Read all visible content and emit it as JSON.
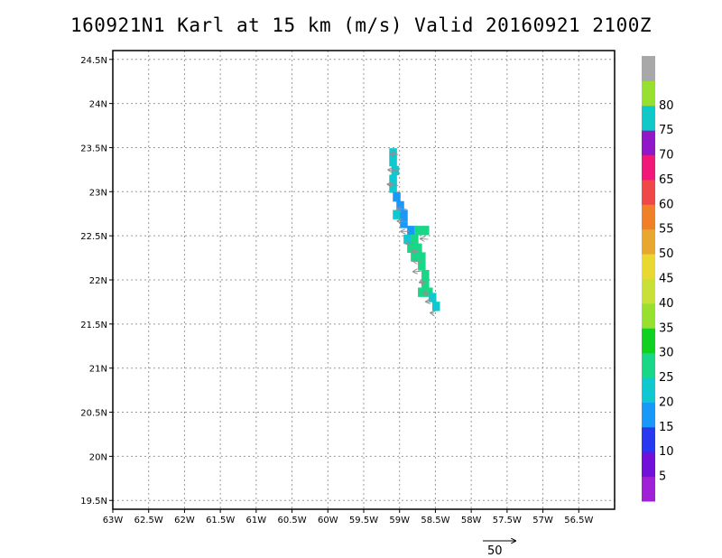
{
  "title": "160921N1 Karl at 15 km (m/s) Valid 20160921 2100Z",
  "chart_data": {
    "type": "heatmap",
    "title": "160921N1 Karl at 15 km (m/s) Valid 20160921 2100Z",
    "xlim": [
      -63.0,
      -56.0
    ],
    "ylim": [
      19.4,
      24.6
    ],
    "x_ticks": [
      -63,
      -62.5,
      -62,
      -61.5,
      -61,
      -60.5,
      -60,
      -59.5,
      -59,
      -58.5,
      -58,
      -57.5,
      -57,
      -56.5
    ],
    "x_tick_labels": [
      "63W",
      "62.5W",
      "62W",
      "61.5W",
      "61W",
      "60.5W",
      "60W",
      "59.5W",
      "59W",
      "58.5W",
      "58W",
      "57.5W",
      "57W",
      "56.5W"
    ],
    "y_ticks": [
      19.5,
      20,
      20.5,
      21,
      21.5,
      22,
      22.5,
      23,
      23.5,
      24,
      24.5
    ],
    "y_tick_labels": [
      "19.5N",
      "20N",
      "20.5N",
      "21N",
      "21.5N",
      "22N",
      "22.5N",
      "23N",
      "23.5N",
      "24N",
      "24.5N"
    ],
    "grid": true,
    "colorbar": {
      "labels": [
        "5",
        "10",
        "15",
        "20",
        "25",
        "30",
        "35",
        "40",
        "45",
        "50",
        "55",
        "60",
        "65",
        "70",
        "75",
        "80"
      ],
      "colors": [
        "#a020d8",
        "#7010d8",
        "#2838f0",
        "#1898f8",
        "#10c8d0",
        "#18d888",
        "#10d020",
        "#98e030",
        "#c8e038",
        "#e8d830",
        "#e8a830",
        "#f08028",
        "#f04848",
        "#f01878",
        "#9018c8",
        "#10c8c8",
        "#98e030",
        "#a8a8a8"
      ]
    },
    "cells": [
      {
        "lon": -59.09,
        "lat": 23.44,
        "speed": 17
      },
      {
        "lon": -59.09,
        "lat": 23.34,
        "speed": 17
      },
      {
        "lon": -59.06,
        "lat": 23.24,
        "speed": 17
      },
      {
        "lon": -59.09,
        "lat": 23.14,
        "speed": 17
      },
      {
        "lon": -59.09,
        "lat": 23.04,
        "speed": 17
      },
      {
        "lon": -59.04,
        "lat": 22.94,
        "speed": 12
      },
      {
        "lon": -58.99,
        "lat": 22.84,
        "speed": 12
      },
      {
        "lon": -59.04,
        "lat": 22.74,
        "speed": 17
      },
      {
        "lon": -58.94,
        "lat": 22.74,
        "speed": 12
      },
      {
        "lon": -58.94,
        "lat": 22.64,
        "speed": 12
      },
      {
        "lon": -58.84,
        "lat": 22.56,
        "speed": 12
      },
      {
        "lon": -58.74,
        "lat": 22.56,
        "speed": 22
      },
      {
        "lon": -58.64,
        "lat": 22.56,
        "speed": 22
      },
      {
        "lon": -58.89,
        "lat": 22.46,
        "speed": 17
      },
      {
        "lon": -58.79,
        "lat": 22.46,
        "speed": 22
      },
      {
        "lon": -58.84,
        "lat": 22.36,
        "speed": 22
      },
      {
        "lon": -58.74,
        "lat": 22.36,
        "speed": 22
      },
      {
        "lon": -58.79,
        "lat": 22.26,
        "speed": 22
      },
      {
        "lon": -58.69,
        "lat": 22.26,
        "speed": 22
      },
      {
        "lon": -58.69,
        "lat": 22.16,
        "speed": 22
      },
      {
        "lon": -58.64,
        "lat": 22.06,
        "speed": 22
      },
      {
        "lon": -58.64,
        "lat": 21.96,
        "speed": 22
      },
      {
        "lon": -58.69,
        "lat": 21.86,
        "speed": 22
      },
      {
        "lon": -58.59,
        "lat": 21.86,
        "speed": 22
      },
      {
        "lon": -58.54,
        "lat": 21.8,
        "speed": 17
      },
      {
        "lon": -58.49,
        "lat": 21.7,
        "speed": 17
      }
    ],
    "vectors": [
      {
        "lon": -59.02,
        "lat": 23.42,
        "u": -12,
        "v": 1
      },
      {
        "lon": -59.02,
        "lat": 23.24,
        "u": -15,
        "v": 1
      },
      {
        "lon": -59.02,
        "lat": 23.07,
        "u": -16,
        "v": 2
      },
      {
        "lon": -58.9,
        "lat": 22.8,
        "u": -14,
        "v": 1
      },
      {
        "lon": -58.9,
        "lat": 22.66,
        "u": -14,
        "v": 1
      },
      {
        "lon": -58.87,
        "lat": 22.55,
        "u": -12,
        "v": 0
      },
      {
        "lon": -58.6,
        "lat": 22.46,
        "u": -12,
        "v": 1
      },
      {
        "lon": -58.8,
        "lat": 22.42,
        "u": -12,
        "v": -1
      },
      {
        "lon": -58.74,
        "lat": 22.32,
        "u": -10,
        "v": 1
      },
      {
        "lon": -58.7,
        "lat": 22.2,
        "u": -12,
        "v": 2
      },
      {
        "lon": -58.7,
        "lat": 22.1,
        "u": -12,
        "v": -1
      },
      {
        "lon": -58.63,
        "lat": 21.98,
        "u": -10,
        "v": -1
      },
      {
        "lon": -58.58,
        "lat": 21.86,
        "u": -10,
        "v": -2
      },
      {
        "lon": -58.54,
        "lat": 21.76,
        "u": -10,
        "v": -1
      },
      {
        "lon": -58.52,
        "lat": 21.62,
        "u": -5,
        "v": 1
      }
    ],
    "reference_vector": {
      "label": "50",
      "value": 50
    }
  }
}
